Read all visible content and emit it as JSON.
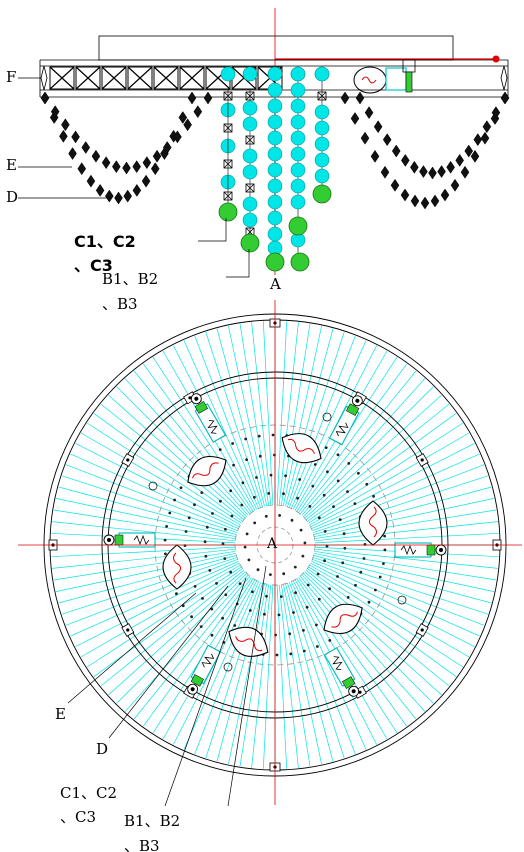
{
  "labels": {
    "f": "F",
    "e_side": "E",
    "d_side": "D",
    "c_side_line1": "C1、C2",
    "c_side_line2": "、C3",
    "b_side_line1": "B1、B2",
    "b_side_line2": "、B3",
    "a_side": "A",
    "a_plan": "A",
    "e_plan": "E",
    "d_plan": "D",
    "c_plan_line1": "C1、C2",
    "c_plan_line2": "、C3",
    "b_plan_line1": "B1、B2",
    "b_plan_line2": "、B3"
  },
  "colors": {
    "line": "#000000",
    "cyan": "#00e5e5",
    "green": "#33cc33",
    "red": "#e00000",
    "grey": "#888888"
  },
  "icons": {
    "bead": "crystal-bead",
    "ball": "glass-ball",
    "driver": "led-driver-module"
  }
}
